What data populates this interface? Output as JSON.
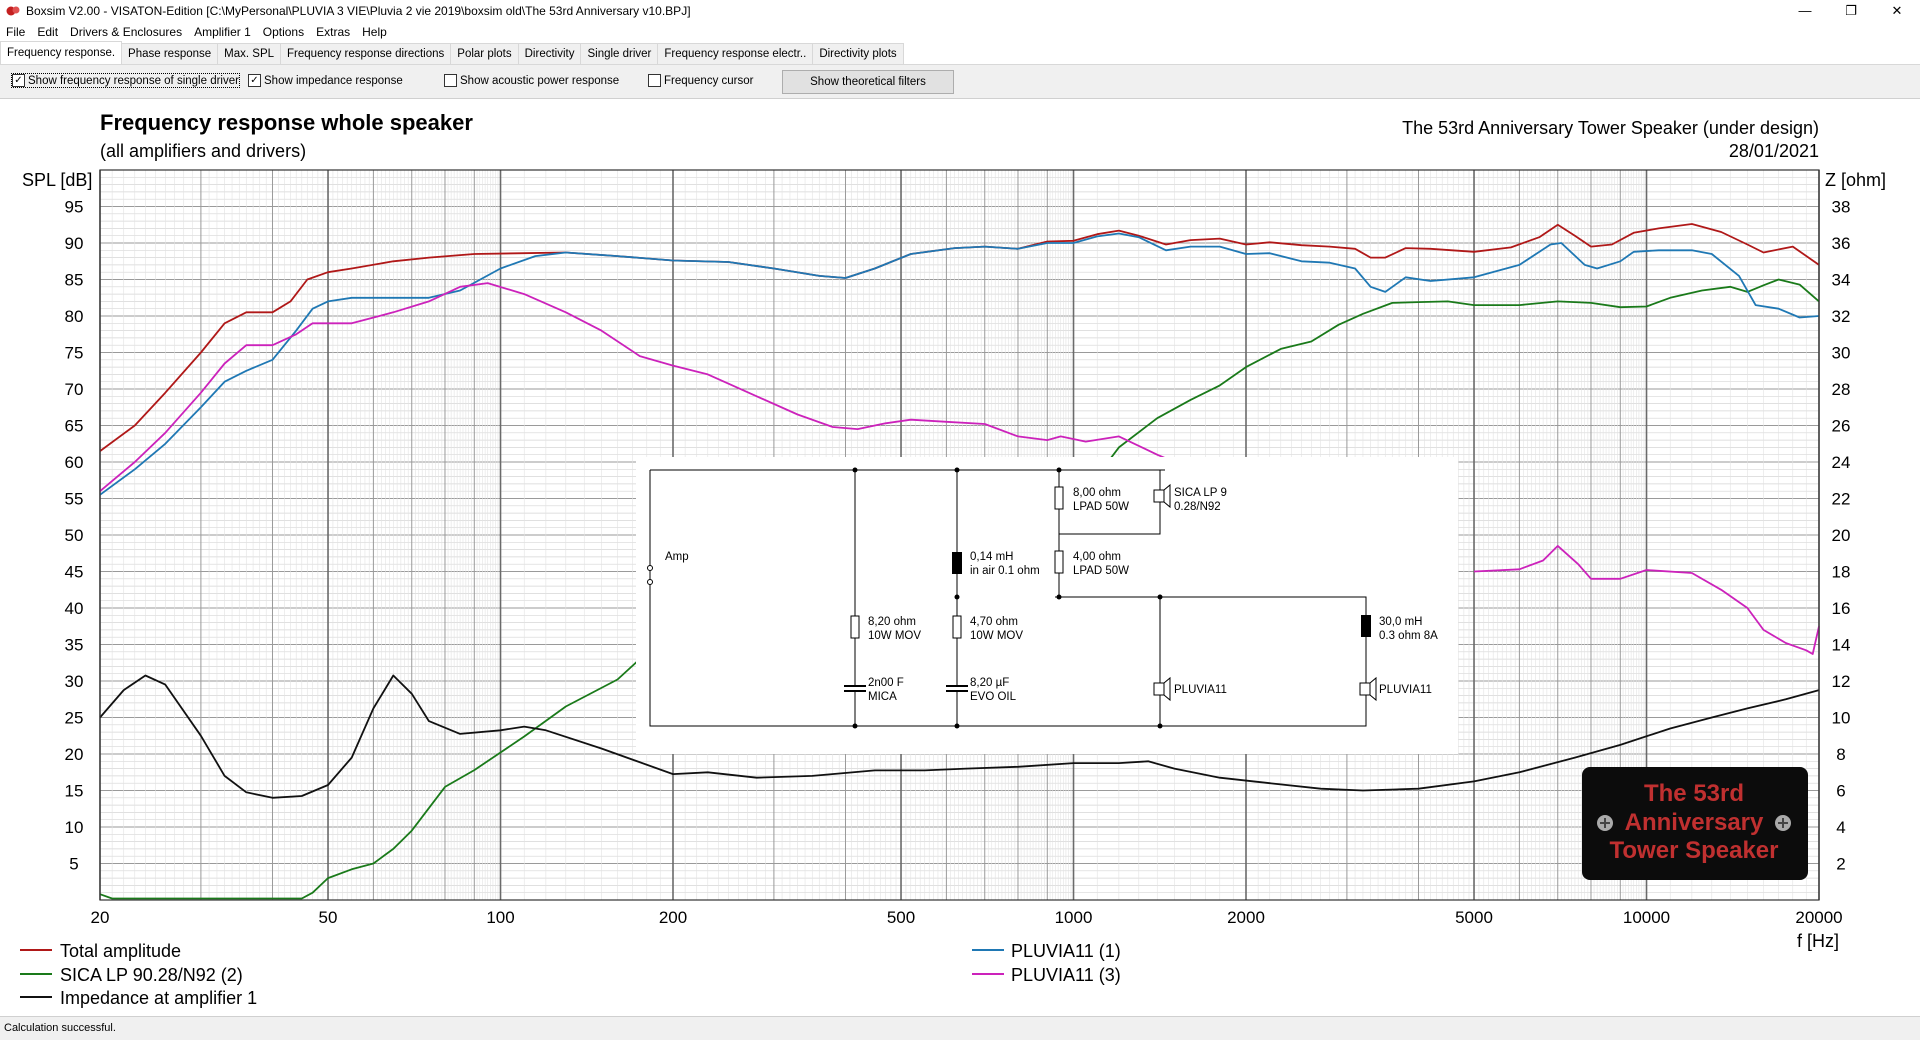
{
  "window": {
    "title": "Boxsim V2.00 - VISATON-Edition [C:\\MyPersonal\\PLUVIA 3 VIE\\Pluvia 2 vie 2019\\boxsim old\\The 53rd Anniversary v10.BPJ]",
    "minimize": "—",
    "maximize": "❐",
    "close": "✕"
  },
  "menu": [
    "File",
    "Edit",
    "Drivers & Enclosures",
    "Amplifier 1",
    "Options",
    "Extras",
    "Help"
  ],
  "tabs": [
    "Frequency response.",
    "Phase response",
    "Max. SPL",
    "Frequency response directions",
    "Polar plots",
    "Directivity",
    "Single driver",
    "Frequency response electr..",
    "Directivity plots"
  ],
  "options": {
    "single_driver": {
      "label": "Show frequency response of single driver",
      "checked": true
    },
    "impedance": {
      "label": "Show impedance response",
      "checked": true
    },
    "acoustic_power": {
      "label": "Show acoustic power response",
      "checked": false
    },
    "freq_cursor": {
      "label": "Frequency cursor",
      "checked": false
    },
    "theoretical_filters": "Show theoretical filters"
  },
  "chart_data": {
    "type": "line",
    "title": "Frequency response whole speaker",
    "subtitle": "(all amplifiers and drivers)",
    "project_title": "The 53rd Anniversary Tower Speaker (under design)",
    "date": "28/01/2021",
    "ylabel": "SPL [dB]",
    "y2label": "Z [ohm]",
    "xlabel": "f [Hz]",
    "x_scale": "log",
    "xlim": [
      20,
      20000
    ],
    "ylim": [
      0,
      100
    ],
    "y2lim": [
      0,
      40
    ],
    "x_ticks": [
      20,
      50,
      100,
      200,
      500,
      1000,
      2000,
      5000,
      10000,
      20000
    ],
    "y_ticks": [
      5,
      10,
      15,
      20,
      25,
      30,
      35,
      40,
      45,
      50,
      55,
      60,
      65,
      70,
      75,
      80,
      85,
      90,
      95
    ],
    "y2_ticks": [
      2,
      4,
      6,
      8,
      10,
      12,
      14,
      16,
      18,
      20,
      22,
      24,
      26,
      28,
      30,
      32,
      34,
      36,
      38
    ],
    "series": [
      {
        "name": "Total amplitude",
        "color": "#b01818",
        "axis": "y",
        "points": [
          [
            20,
            61.5
          ],
          [
            23,
            65
          ],
          [
            26,
            69.5
          ],
          [
            30,
            75
          ],
          [
            33,
            79
          ],
          [
            36,
            80.5
          ],
          [
            40,
            80.5
          ],
          [
            43,
            82
          ],
          [
            46,
            85
          ],
          [
            50,
            86
          ],
          [
            55,
            86.5
          ],
          [
            65,
            87.5
          ],
          [
            75,
            88
          ],
          [
            90,
            88.5
          ],
          [
            110,
            88.6
          ],
          [
            130,
            88.7
          ],
          [
            160,
            88.2
          ],
          [
            200,
            87.6
          ],
          [
            250,
            87.4
          ],
          [
            300,
            86.5
          ],
          [
            360,
            85.5
          ],
          [
            400,
            85.2
          ],
          [
            450,
            86.5
          ],
          [
            520,
            88.5
          ],
          [
            620,
            89.3
          ],
          [
            700,
            89.5
          ],
          [
            800,
            89.2
          ],
          [
            900,
            90.2
          ],
          [
            1000,
            90.3
          ],
          [
            1100,
            91.2
          ],
          [
            1200,
            91.7
          ],
          [
            1300,
            91.0
          ],
          [
            1450,
            89.8
          ],
          [
            1600,
            90.4
          ],
          [
            1800,
            90.6
          ],
          [
            2000,
            89.8
          ],
          [
            2200,
            90.1
          ],
          [
            2500,
            89.7
          ],
          [
            2800,
            89.5
          ],
          [
            3100,
            89.2
          ],
          [
            3300,
            88.0
          ],
          [
            3500,
            88.0
          ],
          [
            3800,
            89.3
          ],
          [
            4200,
            89.2
          ],
          [
            5000,
            88.8
          ],
          [
            5800,
            89.4
          ],
          [
            6500,
            90.8
          ],
          [
            7000,
            92.5
          ],
          [
            7500,
            91.0
          ],
          [
            8000,
            89.5
          ],
          [
            8700,
            89.8
          ],
          [
            9500,
            91.4
          ],
          [
            10500,
            92.0
          ],
          [
            12000,
            92.6
          ],
          [
            13500,
            91.5
          ],
          [
            15000,
            89.8
          ],
          [
            16000,
            88.7
          ],
          [
            18000,
            89.5
          ],
          [
            20000,
            87.0
          ]
        ]
      },
      {
        "name": "SICA LP 90.28/N92  (2)",
        "color": "#1a7a1a",
        "axis": "y",
        "points": [
          [
            20,
            0.8
          ],
          [
            21,
            0.2
          ],
          [
            30,
            0.2
          ],
          [
            45,
            0.2
          ],
          [
            47,
            1
          ],
          [
            50,
            3
          ],
          [
            55,
            4.2
          ],
          [
            60,
            5
          ],
          [
            65,
            7
          ],
          [
            70,
            9.5
          ],
          [
            80,
            15.5
          ],
          [
            90,
            17.8
          ],
          [
            100,
            20.2
          ],
          [
            110,
            22.4
          ],
          [
            130,
            26.5
          ],
          [
            160,
            30.2
          ],
          [
            175,
            33.0
          ],
          [
            1000,
            54
          ],
          [
            1050,
            56
          ],
          [
            1200,
            62
          ],
          [
            1400,
            66
          ],
          [
            1600,
            68.5
          ],
          [
            1800,
            70.5
          ],
          [
            2000,
            73
          ],
          [
            2300,
            75.5
          ],
          [
            2600,
            76.5
          ],
          [
            2900,
            78.8
          ],
          [
            3200,
            80.3
          ],
          [
            3600,
            81.8
          ],
          [
            4000,
            81.9
          ],
          [
            4500,
            82.0
          ],
          [
            5000,
            81.5
          ],
          [
            6000,
            81.5
          ],
          [
            7000,
            82.0
          ],
          [
            8000,
            81.8
          ],
          [
            9000,
            81.2
          ],
          [
            10000,
            81.3
          ],
          [
            11000,
            82.5
          ],
          [
            12500,
            83.5
          ],
          [
            14000,
            84.0
          ],
          [
            15000,
            83.3
          ],
          [
            16000,
            84.2
          ],
          [
            17000,
            85.0
          ],
          [
            18500,
            84.3
          ],
          [
            20000,
            82.0
          ]
        ]
      },
      {
        "name": "PLUVIA11 (1)",
        "color": "#1f78b4",
        "axis": "y",
        "points": [
          [
            20,
            55.5
          ],
          [
            23,
            59
          ],
          [
            26,
            62.5
          ],
          [
            30,
            67.5
          ],
          [
            33,
            71
          ],
          [
            36,
            72.5
          ],
          [
            40,
            74
          ],
          [
            44,
            78
          ],
          [
            47,
            81
          ],
          [
            50,
            82
          ],
          [
            55,
            82.5
          ],
          [
            65,
            82.5
          ],
          [
            75,
            82.5
          ],
          [
            85,
            83.5
          ],
          [
            100,
            86.5
          ],
          [
            115,
            88.2
          ],
          [
            130,
            88.7
          ],
          [
            160,
            88.2
          ],
          [
            200,
            87.6
          ],
          [
            250,
            87.4
          ],
          [
            300,
            86.5
          ],
          [
            360,
            85.5
          ],
          [
            400,
            85.2
          ],
          [
            450,
            86.5
          ],
          [
            520,
            88.5
          ],
          [
            620,
            89.3
          ],
          [
            700,
            89.5
          ],
          [
            800,
            89.2
          ],
          [
            900,
            90.0
          ],
          [
            1000,
            90.0
          ],
          [
            1100,
            90.9
          ],
          [
            1200,
            91.3
          ],
          [
            1300,
            90.8
          ],
          [
            1450,
            89.0
          ],
          [
            1600,
            89.5
          ],
          [
            1800,
            89.5
          ],
          [
            2000,
            88.5
          ],
          [
            2200,
            88.6
          ],
          [
            2500,
            87.5
          ],
          [
            2800,
            87.3
          ],
          [
            3100,
            86.5
          ],
          [
            3300,
            84.0
          ],
          [
            3500,
            83.3
          ],
          [
            3800,
            85.3
          ],
          [
            4200,
            84.8
          ],
          [
            5000,
            85.3
          ],
          [
            6000,
            87.0
          ],
          [
            6800,
            89.8
          ],
          [
            7100,
            90.0
          ],
          [
            7800,
            87.0
          ],
          [
            8200,
            86.5
          ],
          [
            9000,
            87.5
          ],
          [
            9500,
            88.8
          ],
          [
            10500,
            89.0
          ],
          [
            12000,
            89.0
          ],
          [
            13000,
            88.5
          ],
          [
            14500,
            85.5
          ],
          [
            15500,
            81.5
          ],
          [
            17000,
            81.0
          ],
          [
            18500,
            79.8
          ],
          [
            20000,
            80.0
          ]
        ]
      },
      {
        "name": "PLUVIA11 (3)",
        "color": "#cc22bb",
        "axis": "y",
        "points": [
          [
            20,
            56
          ],
          [
            23,
            60
          ],
          [
            26,
            64
          ],
          [
            30,
            69.5
          ],
          [
            33,
            73.5
          ],
          [
            36,
            76
          ],
          [
            40,
            76
          ],
          [
            44,
            77.5
          ],
          [
            47,
            79
          ],
          [
            55,
            79
          ],
          [
            65,
            80.5
          ],
          [
            75,
            82
          ],
          [
            85,
            84.0
          ],
          [
            95,
            84.5
          ],
          [
            110,
            83
          ],
          [
            130,
            80.5
          ],
          [
            150,
            78
          ],
          [
            175,
            74.5
          ],
          [
            200,
            73.2
          ],
          [
            230,
            72
          ],
          [
            280,
            69
          ],
          [
            330,
            66.5
          ],
          [
            380,
            64.8
          ],
          [
            420,
            64.5
          ],
          [
            470,
            65.3
          ],
          [
            520,
            65.8
          ],
          [
            600,
            65.5
          ],
          [
            700,
            65.2
          ],
          [
            800,
            63.5
          ],
          [
            900,
            63.0
          ],
          [
            950,
            63.5
          ],
          [
            1050,
            62.8
          ],
          [
            1200,
            63.5
          ],
          [
            1400,
            61
          ],
          [
            1500,
            60
          ]
        ],
        "segments": [
          [
            [
              5000,
              45.0
            ],
            [
              6000,
              45.3
            ],
            [
              6600,
              46.5
            ],
            [
              7000,
              48.5
            ],
            [
              7600,
              46.0
            ],
            [
              8000,
              44.0
            ],
            [
              9000,
              44.0
            ],
            [
              10000,
              45.2
            ],
            [
              12000,
              44.8
            ],
            [
              13500,
              42.5
            ],
            [
              15000,
              40.0
            ],
            [
              16000,
              37.0
            ],
            [
              17500,
              35.2
            ],
            [
              19000,
              34.2
            ],
            [
              19500,
              33.7
            ],
            [
              20000,
              37.5
            ]
          ]
        ]
      },
      {
        "name": "Impedance at amplifier 1",
        "color": "#111111",
        "axis": "y2",
        "points": [
          [
            20,
            10.0
          ],
          [
            22,
            11.5
          ],
          [
            24,
            12.3
          ],
          [
            26,
            11.8
          ],
          [
            30,
            9.0
          ],
          [
            33,
            6.8
          ],
          [
            36,
            5.9
          ],
          [
            40,
            5.6
          ],
          [
            45,
            5.7
          ],
          [
            50,
            6.3
          ],
          [
            55,
            7.8
          ],
          [
            60,
            10.5
          ],
          [
            65,
            12.3
          ],
          [
            70,
            11.3
          ],
          [
            75,
            9.8
          ],
          [
            85,
            9.1
          ],
          [
            100,
            9.3
          ],
          [
            110,
            9.5
          ],
          [
            120,
            9.3
          ],
          [
            150,
            8.3
          ],
          [
            200,
            6.9
          ],
          [
            230,
            7.0
          ],
          [
            280,
            6.7
          ],
          [
            350,
            6.8
          ],
          [
            450,
            7.1
          ],
          [
            550,
            7.1
          ],
          [
            650,
            7.2
          ],
          [
            800,
            7.3
          ],
          [
            1000,
            7.5
          ],
          [
            1200,
            7.5
          ],
          [
            1350,
            7.6
          ],
          [
            1500,
            7.2
          ],
          [
            1800,
            6.7
          ],
          [
            2200,
            6.4
          ],
          [
            2700,
            6.1
          ],
          [
            3200,
            6.0
          ],
          [
            4000,
            6.1
          ],
          [
            5000,
            6.5
          ],
          [
            6000,
            7.0
          ],
          [
            7500,
            7.8
          ],
          [
            9000,
            8.5
          ],
          [
            11000,
            9.4
          ],
          [
            13000,
            10.0
          ],
          [
            15000,
            10.5
          ],
          [
            17500,
            11.0
          ],
          [
            20000,
            11.5
          ]
        ]
      }
    ],
    "legend": {
      "placement": "bottom",
      "left": [
        "Total amplitude",
        "SICA LP 90.28/N92  (2)",
        "Impedance at amplifier 1"
      ],
      "right": [
        "PLUVIA11 (1)",
        "PLUVIA11 (3)"
      ]
    }
  },
  "schematic": {
    "amp": "Amp",
    "components": [
      {
        "id": "r1",
        "line1": "8,20 ohm",
        "line2": "10W MOV"
      },
      {
        "id": "c1",
        "line1": "2n00 F",
        "line2": "MICA"
      },
      {
        "id": "l1",
        "line1": "0,14 mH",
        "line2": "in air 0.1 ohm"
      },
      {
        "id": "r2",
        "line1": "4,70 ohm",
        "line2": "10W MOV"
      },
      {
        "id": "c2",
        "line1": "8,20 µF",
        "line2": "EVO OIL"
      },
      {
        "id": "r3",
        "line1": "8,00 ohm",
        "line2": "LPAD 50W"
      },
      {
        "id": "r4",
        "line1": "4,00 ohm",
        "line2": "LPAD 50W"
      },
      {
        "id": "d1",
        "line1": "SICA LP 9",
        "line2": "0.28/N92"
      },
      {
        "id": "d2",
        "line1": "PLUVIA11",
        "line2": ""
      },
      {
        "id": "l2",
        "line1": "30,0 mH",
        "line2": "0.3 ohm 8A"
      },
      {
        "id": "d3",
        "line1": "PLUVIA11",
        "line2": ""
      }
    ]
  },
  "logo": {
    "line1": "The 53rd",
    "line2": "Anniversary",
    "line3": "Tower Speaker",
    "color": "#c03030"
  },
  "status": "Calculation successful."
}
